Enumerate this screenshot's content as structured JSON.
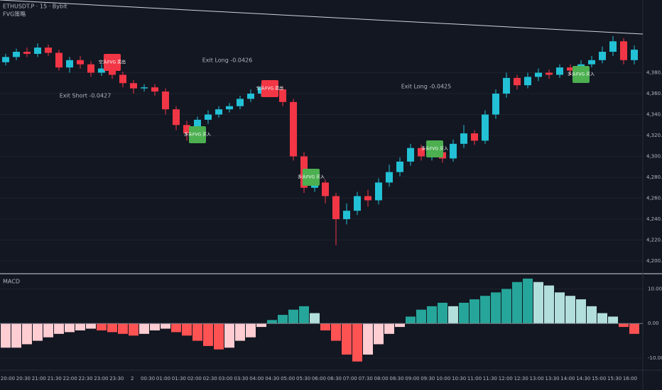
{
  "header": {
    "symbol": "ETHUSDT.P · 15 · Bybit",
    "strategy": "FVG策略"
  },
  "chart_data": [
    {
      "type": "candlestick",
      "up_color": "#22c1d6",
      "down_color": "#f23645",
      "open": [
        4390,
        4395,
        4400,
        4398,
        4404,
        4399,
        4385,
        4392,
        4388,
        4380,
        4384,
        4378,
        4370,
        4365,
        4366,
        4362,
        4345,
        4330,
        4322,
        4335,
        4340,
        4345,
        4348,
        4355,
        4360,
        4366,
        4364,
        4352,
        4300,
        4270,
        4275,
        4262,
        4240,
        4248,
        4262,
        4258,
        4275,
        4285,
        4295,
        4308,
        4300,
        4304,
        4298,
        4312,
        4322,
        4315,
        4340,
        4360,
        4375,
        4368,
        4376,
        4380,
        4378,
        4385,
        4382,
        4388,
        4392,
        4400,
        4410,
        4392
      ],
      "high": [
        4398,
        4403,
        4404,
        4408,
        4407,
        4402,
        4395,
        4396,
        4391,
        4388,
        4387,
        4381,
        4373,
        4369,
        4369,
        4365,
        4348,
        4334,
        4338,
        4344,
        4348,
        4351,
        4358,
        4364,
        4369,
        4370,
        4367,
        4355,
        4304,
        4280,
        4278,
        4265,
        4255,
        4266,
        4268,
        4279,
        4292,
        4299,
        4312,
        4311,
        4308,
        4307,
        4316,
        4330,
        4325,
        4344,
        4364,
        4380,
        4378,
        4380,
        4384,
        4383,
        4388,
        4388,
        4392,
        4396,
        4405,
        4415,
        4413,
        4406
      ],
      "low": [
        4387,
        4392,
        4395,
        4395,
        4396,
        4382,
        4380,
        4384,
        4376,
        4377,
        4374,
        4366,
        4360,
        4362,
        4358,
        4340,
        4325,
        4315,
        4318,
        4331,
        4337,
        4342,
        4345,
        4352,
        4357,
        4360,
        4348,
        4296,
        4265,
        4266,
        4255,
        4215,
        4235,
        4244,
        4252,
        4254,
        4271,
        4281,
        4291,
        4296,
        4296,
        4294,
        4295,
        4308,
        4311,
        4312,
        4336,
        4356,
        4364,
        4365,
        4372,
        4374,
        4375,
        4378,
        4379,
        4385,
        4389,
        4396,
        4388,
        4388
      ],
      "close": [
        4395,
        4400,
        4398,
        4404,
        4399,
        4385,
        4392,
        4388,
        4380,
        4384,
        4378,
        4370,
        4365,
        4366,
        4362,
        4345,
        4330,
        4322,
        4335,
        4340,
        4345,
        4348,
        4355,
        4360,
        4366,
        4364,
        4352,
        4300,
        4270,
        4275,
        4262,
        4240,
        4248,
        4262,
        4258,
        4275,
        4285,
        4295,
        4308,
        4300,
        4304,
        4298,
        4312,
        4322,
        4315,
        4340,
        4360,
        4375,
        4368,
        4376,
        4380,
        4378,
        4385,
        4382,
        4388,
        4392,
        4400,
        4410,
        4392,
        4402
      ],
      "ylim": [
        4188.5,
        4449.5
      ],
      "yticks": [
        {
          "value": 4200,
          "label": "4,200.00"
        },
        {
          "value": 4220,
          "label": "4,220.00"
        },
        {
          "value": 4240,
          "label": "4,240.00"
        },
        {
          "value": 4260,
          "label": "4,260.00"
        },
        {
          "value": 4280,
          "label": "4,280.00"
        },
        {
          "value": 4300,
          "label": "4,300.00"
        },
        {
          "value": 4320,
          "label": "4,320.00"
        },
        {
          "value": 4340,
          "label": "4,340.00"
        },
        {
          "value": 4360,
          "label": "4,360.00"
        },
        {
          "value": 4380,
          "label": "4,380.00"
        }
      ],
      "annotations": [
        {
          "text": "空头FVG 卖出",
          "kind": "sell"
        },
        {
          "text": "Exit Short -0.0427",
          "kind": "exit"
        },
        {
          "text": "多头FVG 买入",
          "kind": "buy"
        },
        {
          "text": "Exit Long -0.0426",
          "kind": "exit"
        },
        {
          "text": "空头FVG 卖出",
          "kind": "sell"
        },
        {
          "text": "多头FVG 买入",
          "kind": "buy"
        },
        {
          "text": "Exit Long -0.0425",
          "kind": "exit"
        },
        {
          "text": "多头FVG 买入",
          "kind": "buy"
        },
        {
          "text": "多头FVG 买入",
          "kind": "buy"
        }
      ],
      "time_labels": [
        "20:00",
        "20:30",
        "21:00",
        "21:30",
        "22:00",
        "22:30",
        "23:00",
        "23:30",
        "2",
        "00:30",
        "01:00",
        "01:30",
        "02:00",
        "02:30",
        "03:00",
        "03:30",
        "04:00",
        "04:30",
        "05:00",
        "05:30",
        "06:00",
        "06:30",
        "07:00",
        "07:30",
        "08:00",
        "08:30",
        "09:00",
        "09:30",
        "10:00",
        "10:30",
        "11:00",
        "11:30",
        "12:00",
        "12:30",
        "13:00",
        "13:30",
        "14:00",
        "14:30",
        "15:00",
        "15:30",
        "16:00"
      ]
    },
    {
      "type": "histogram",
      "title": "MACD",
      "colors": {
        "grow_above": "#26a69a",
        "fall_above": "#b2dfdb",
        "grow_below": "#ffcdd2",
        "fall_below": "#ff5252"
      },
      "values": [
        -7,
        -7,
        -6,
        -5,
        -4,
        -3,
        -2.5,
        -2,
        -1.5,
        -2,
        -2.5,
        -3,
        -3.5,
        -3,
        -2,
        -1.5,
        -2.5,
        -3.5,
        -5,
        -6.5,
        -7.5,
        -7,
        -5,
        -4,
        -1,
        1,
        2.5,
        4,
        5,
        3,
        -2,
        -5,
        -9,
        -11,
        -9,
        -6,
        -3,
        -1,
        2,
        4,
        5,
        6,
        5,
        6,
        7,
        8,
        9,
        10,
        12,
        13,
        12,
        11,
        9,
        8,
        7,
        5,
        3,
        2,
        -1,
        -3
      ],
      "ylim": [
        -13.5,
        14
      ],
      "yticks": [
        {
          "value": 10,
          "label": "10.00"
        },
        {
          "value": 0,
          "label": "0.00"
        },
        {
          "value": -10,
          "label": "-10.00"
        }
      ]
    }
  ]
}
